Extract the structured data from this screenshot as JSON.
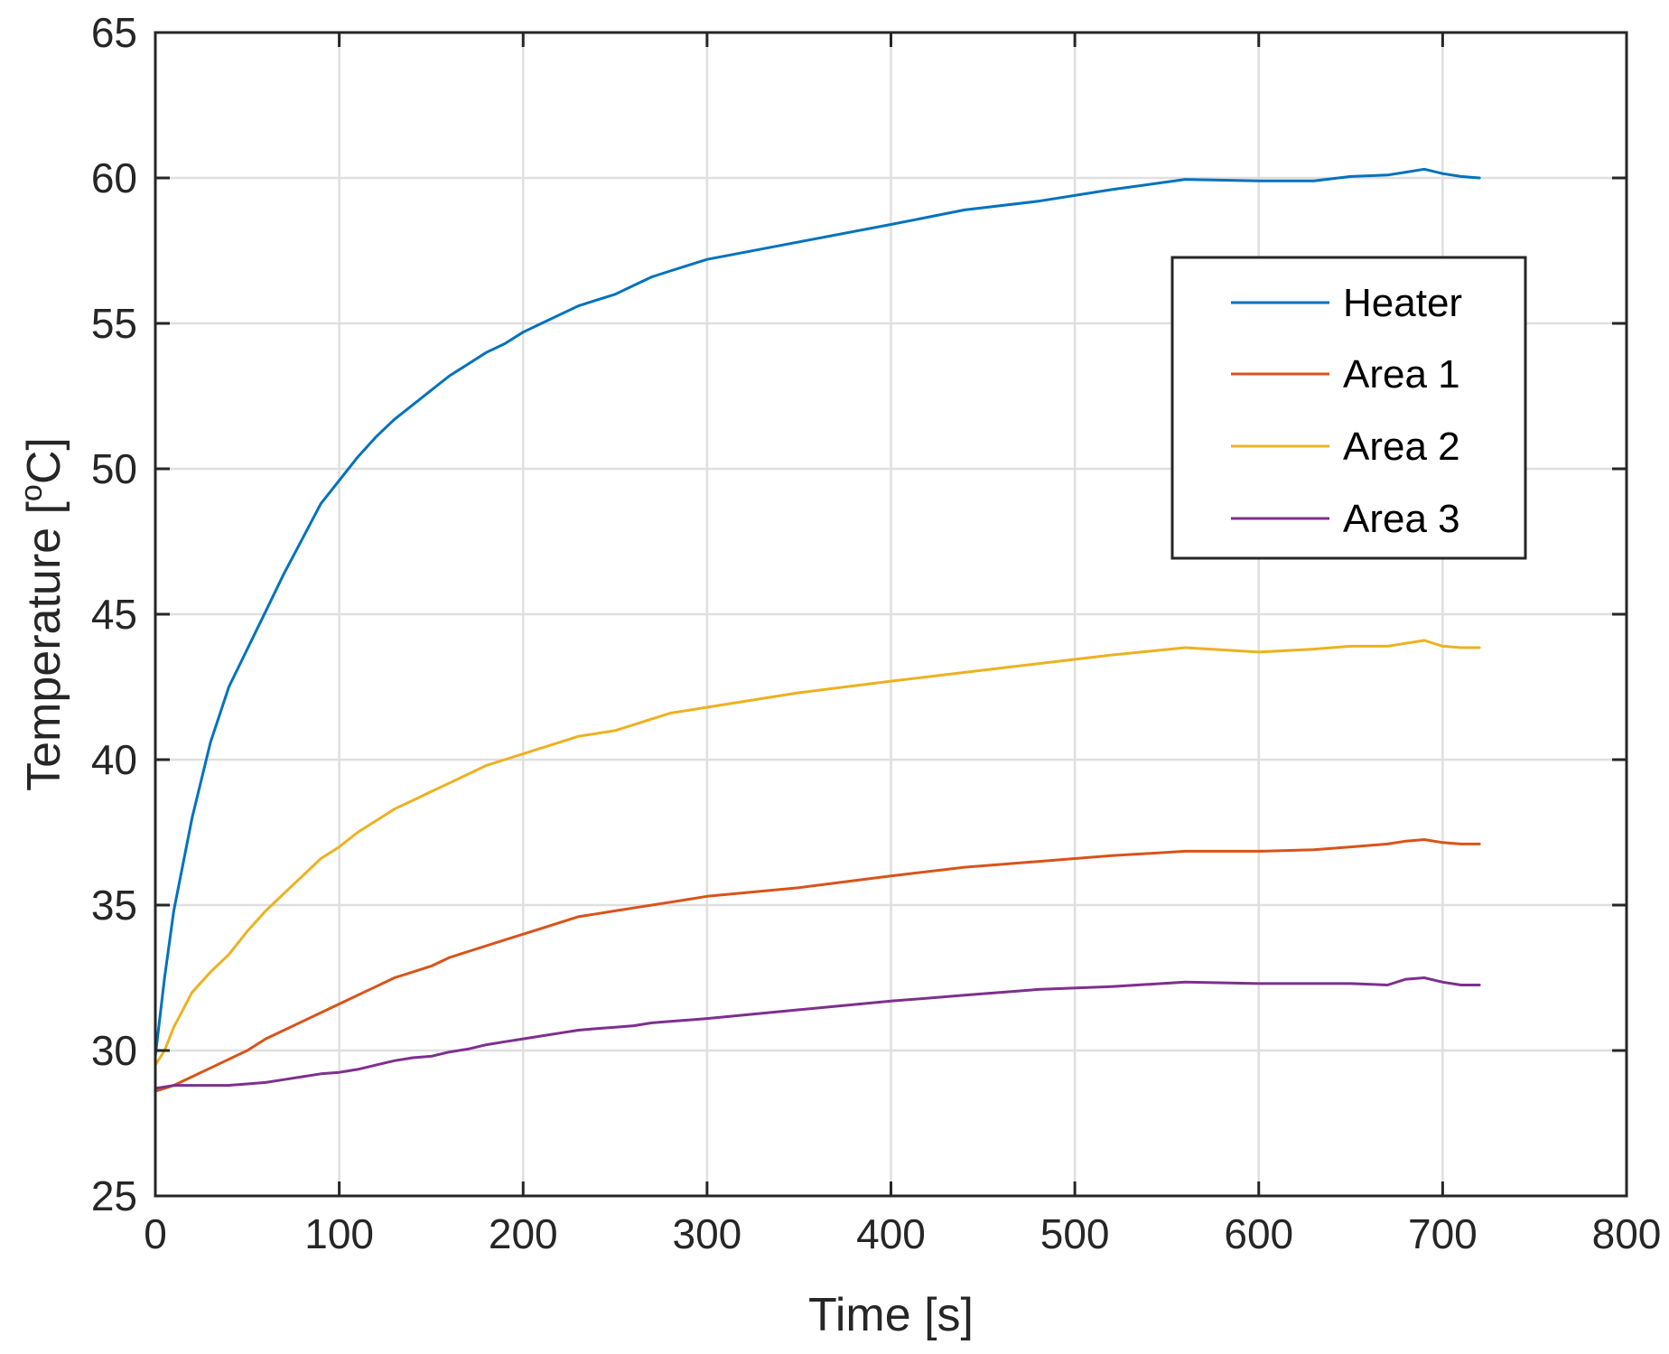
{
  "chart_data": {
    "type": "line",
    "xlabel": "Time [s]",
    "ylabel": "Temperature [",
    "ylabel_sup": "o",
    "ylabel_unit": "C]",
    "xlim": [
      0,
      800
    ],
    "ylim": [
      25,
      65
    ],
    "xticks": [
      0,
      100,
      200,
      300,
      400,
      500,
      600,
      700,
      800
    ],
    "yticks": [
      25,
      30,
      35,
      40,
      45,
      50,
      55,
      60,
      65
    ],
    "grid": true,
    "legend_position": "top-right",
    "series": [
      {
        "name": "Heater",
        "color": "#0072BD",
        "x": [
          0,
          5,
          10,
          20,
          30,
          40,
          50,
          60,
          70,
          80,
          90,
          100,
          110,
          120,
          130,
          140,
          150,
          160,
          170,
          180,
          190,
          200,
          210,
          220,
          230,
          240,
          250,
          260,
          270,
          280,
          290,
          300,
          350,
          400,
          440,
          480,
          520,
          560,
          600,
          630,
          650,
          670,
          680,
          690,
          700,
          710,
          720
        ],
        "y": [
          29.8,
          32.5,
          34.8,
          38.0,
          40.6,
          42.5,
          43.8,
          45.1,
          46.4,
          47.6,
          48.8,
          49.6,
          50.4,
          51.1,
          51.7,
          52.2,
          52.7,
          53.2,
          53.6,
          54.0,
          54.3,
          54.7,
          55.0,
          55.3,
          55.6,
          55.8,
          56.0,
          56.3,
          56.6,
          56.8,
          57.0,
          57.2,
          57.8,
          58.4,
          58.9,
          59.2,
          59.6,
          59.95,
          59.9,
          59.9,
          60.05,
          60.1,
          60.2,
          60.3,
          60.15,
          60.05,
          60.0
        ]
      },
      {
        "name": "Area 1",
        "color": "#D95319",
        "x": [
          0,
          5,
          10,
          20,
          30,
          40,
          50,
          60,
          70,
          80,
          90,
          100,
          110,
          120,
          130,
          140,
          150,
          160,
          170,
          180,
          190,
          200,
          210,
          220,
          230,
          240,
          250,
          260,
          270,
          280,
          290,
          300,
          350,
          400,
          440,
          480,
          520,
          560,
          600,
          630,
          650,
          670,
          680,
          690,
          700,
          710,
          720
        ],
        "y": [
          28.6,
          28.7,
          28.8,
          29.1,
          29.4,
          29.7,
          30.0,
          30.4,
          30.7,
          31.0,
          31.3,
          31.6,
          31.9,
          32.2,
          32.5,
          32.7,
          32.9,
          33.2,
          33.4,
          33.6,
          33.8,
          34.0,
          34.2,
          34.4,
          34.6,
          34.7,
          34.8,
          34.9,
          35.0,
          35.1,
          35.2,
          35.3,
          35.6,
          36.0,
          36.3,
          36.5,
          36.7,
          36.85,
          36.85,
          36.9,
          37.0,
          37.1,
          37.2,
          37.25,
          37.15,
          37.1,
          37.1
        ]
      },
      {
        "name": "Area 2",
        "color": "#EDB120",
        "x": [
          0,
          5,
          10,
          20,
          30,
          40,
          50,
          60,
          70,
          80,
          90,
          100,
          110,
          120,
          130,
          140,
          150,
          160,
          170,
          180,
          190,
          200,
          210,
          220,
          230,
          240,
          250,
          260,
          270,
          280,
          290,
          300,
          350,
          400,
          440,
          480,
          520,
          560,
          600,
          630,
          650,
          670,
          680,
          690,
          700,
          710,
          720
        ],
        "y": [
          29.5,
          30.0,
          30.8,
          32.0,
          32.7,
          33.3,
          34.1,
          34.8,
          35.4,
          36.0,
          36.6,
          37.0,
          37.5,
          37.9,
          38.3,
          38.6,
          38.9,
          39.2,
          39.5,
          39.8,
          40.0,
          40.2,
          40.4,
          40.6,
          40.8,
          40.9,
          41.0,
          41.2,
          41.4,
          41.6,
          41.7,
          41.8,
          42.3,
          42.7,
          43.0,
          43.3,
          43.6,
          43.85,
          43.7,
          43.8,
          43.9,
          43.9,
          44.0,
          44.1,
          43.9,
          43.85,
          43.85
        ]
      },
      {
        "name": "Area 3",
        "color": "#7E2F8E",
        "x": [
          0,
          5,
          10,
          20,
          30,
          40,
          50,
          60,
          70,
          80,
          90,
          100,
          110,
          120,
          130,
          140,
          150,
          160,
          170,
          180,
          190,
          200,
          210,
          220,
          230,
          240,
          250,
          260,
          270,
          280,
          290,
          300,
          350,
          400,
          440,
          480,
          520,
          560,
          600,
          630,
          650,
          670,
          680,
          690,
          700,
          710,
          720
        ],
        "y": [
          28.7,
          28.75,
          28.8,
          28.8,
          28.8,
          28.8,
          28.85,
          28.9,
          29.0,
          29.1,
          29.2,
          29.25,
          29.35,
          29.5,
          29.65,
          29.75,
          29.8,
          29.95,
          30.05,
          30.2,
          30.3,
          30.4,
          30.5,
          30.6,
          30.7,
          30.75,
          30.8,
          30.85,
          30.95,
          31.0,
          31.05,
          31.1,
          31.4,
          31.7,
          31.9,
          32.1,
          32.2,
          32.35,
          32.3,
          32.3,
          32.3,
          32.25,
          32.45,
          32.5,
          32.35,
          32.25,
          32.25
        ]
      }
    ]
  }
}
